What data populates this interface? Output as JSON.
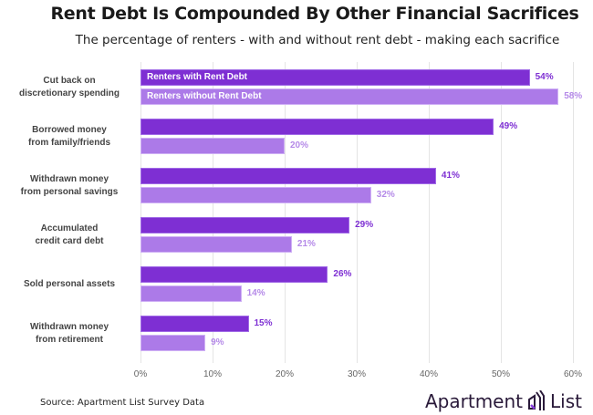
{
  "title": "Rent Debt Is Compounded By Other Financial Sacrifices",
  "subtitle": "The percentage of renters - with and without rent debt - making each sacrifice",
  "source": "Source: Apartment List Survey Data",
  "logo": {
    "left": "Apartment",
    "right": "List",
    "icon": "apartment-list-logo-icon"
  },
  "colors": {
    "with_debt": "#7e2fd3",
    "without_debt": "#ac7ae8"
  },
  "x_ticks": [
    "0%",
    "10%",
    "20%",
    "30%",
    "40%",
    "50%",
    "60%"
  ],
  "legend": {
    "with_debt": "Renters with Rent Debt",
    "without_debt": "Renters without Rent Debt"
  },
  "groups": [
    {
      "label": "Cut back on\ndiscretionary spending",
      "with": 54,
      "with_label": "54%",
      "without": 58,
      "without_label": "58%"
    },
    {
      "label": "Borrowed money\nfrom family/friends",
      "with": 49,
      "with_label": "49%",
      "without": 20,
      "without_label": "20%"
    },
    {
      "label": "Withdrawn money\nfrom personal savings",
      "with": 41,
      "with_label": "41%",
      "without": 32,
      "without_label": "32%"
    },
    {
      "label": "Accumulated\ncredit card debt",
      "with": 29,
      "with_label": "29%",
      "without": 21,
      "without_label": "21%"
    },
    {
      "label": "Sold personal assets",
      "with": 26,
      "with_label": "26%",
      "without": 14,
      "without_label": "14%"
    },
    {
      "label": "Withdrawn money\nfrom retirement",
      "with": 15,
      "with_label": "15%",
      "without": 9,
      "without_label": "9%"
    }
  ],
  "chart_data": {
    "type": "bar",
    "orientation": "horizontal",
    "title": "Rent Debt Is Compounded By Other Financial Sacrifices",
    "subtitle": "The percentage of renters - with and without rent debt - making each sacrifice",
    "categories": [
      "Cut back on discretionary spending",
      "Borrowed money from family/friends",
      "Withdrawn money from personal savings",
      "Accumulated credit card debt",
      "Sold personal assets",
      "Withdrawn money from retirement"
    ],
    "series": [
      {
        "name": "Renters with Rent Debt",
        "values": [
          54,
          49,
          41,
          29,
          26,
          15
        ],
        "color": "#7e2fd3"
      },
      {
        "name": "Renters without Rent Debt",
        "values": [
          58,
          20,
          32,
          21,
          14,
          9
        ],
        "color": "#ac7ae8"
      }
    ],
    "xlabel": "",
    "ylabel": "",
    "xlim": [
      0,
      60
    ],
    "x_ticks": [
      "0%",
      "10%",
      "20%",
      "30%",
      "40%",
      "50%",
      "60%"
    ],
    "grid": true,
    "legend_position": "inside first bars",
    "source": "Source: Apartment List Survey Data"
  }
}
